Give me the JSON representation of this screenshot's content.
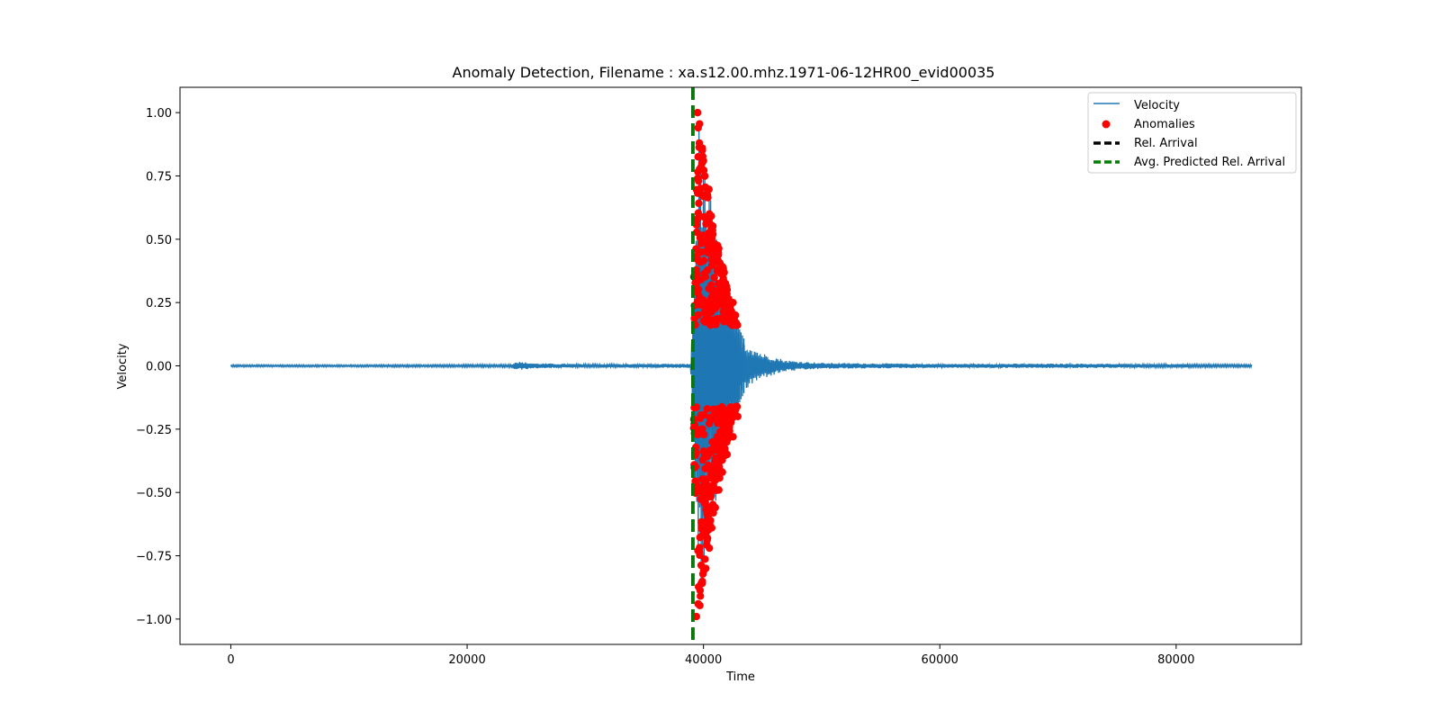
{
  "chart_data": {
    "type": "line",
    "title": "Anomaly Detection, Filename : xa.s12.00.mhz.1971-06-12HR00_evid00035",
    "xlabel": "Time",
    "ylabel": "Velocity",
    "xlim": [
      -4300,
      90600
    ],
    "ylim": [
      -1.1,
      1.1
    ],
    "x_ticks": [
      0,
      20000,
      40000,
      60000,
      80000
    ],
    "x_tick_labels": [
      "0",
      "20000",
      "40000",
      "60000",
      "80000"
    ],
    "y_ticks": [
      1.0,
      0.75,
      0.5,
      0.25,
      0.0,
      -0.25,
      -0.5,
      -0.75,
      -1.0
    ],
    "y_tick_labels": [
      "1.00",
      "0.75",
      "0.50",
      "0.25",
      "0.00",
      "−0.25",
      "−0.50",
      "−0.75",
      "−1.00"
    ],
    "grid": false,
    "legend_position": "top-right",
    "series": [
      {
        "name": "Velocity",
        "kind": "line",
        "color": "#1f77b4",
        "envelope": [
          {
            "t": 0,
            "amp": 0.004
          },
          {
            "t": 10000,
            "amp": 0.004
          },
          {
            "t": 20000,
            "amp": 0.005
          },
          {
            "t": 23800,
            "amp": 0.006
          },
          {
            "t": 24000,
            "amp": 0.018
          },
          {
            "t": 25800,
            "amp": 0.01
          },
          {
            "t": 30000,
            "amp": 0.007
          },
          {
            "t": 38900,
            "amp": 0.008
          },
          {
            "t": 39100,
            "amp": 0.25
          },
          {
            "t": 39600,
            "amp": 1.0
          },
          {
            "t": 41000,
            "amp": 0.55
          },
          {
            "t": 42500,
            "amp": 0.2
          },
          {
            "t": 43500,
            "amp": 0.1
          },
          {
            "t": 45000,
            "amp": 0.05
          },
          {
            "t": 47000,
            "amp": 0.022
          },
          {
            "t": 50000,
            "amp": 0.012
          },
          {
            "t": 60000,
            "amp": 0.008
          },
          {
            "t": 71000,
            "amp": 0.009
          },
          {
            "t": 80000,
            "amp": 0.007
          },
          {
            "t": 86400,
            "amp": 0.005
          }
        ]
      },
      {
        "name": "Anomalies",
        "kind": "scatter",
        "color": "#ff0000",
        "abs_value_min": 0.16,
        "points": [
          {
            "x": 39500,
            "y": 1.0
          },
          {
            "x": 39550,
            "y": 0.94
          },
          {
            "x": 39650,
            "y": 0.88
          },
          {
            "x": 39900,
            "y": 0.86
          },
          {
            "x": 40000,
            "y": 0.81
          },
          {
            "x": 40100,
            "y": 0.75
          },
          {
            "x": 40300,
            "y": 0.68
          },
          {
            "x": 40500,
            "y": 0.6
          },
          {
            "x": 40800,
            "y": 0.52
          },
          {
            "x": 41200,
            "y": 0.45
          },
          {
            "x": 41500,
            "y": 0.38
          },
          {
            "x": 42000,
            "y": 0.3
          },
          {
            "x": 42500,
            "y": 0.25
          },
          {
            "x": 42700,
            "y": 0.2
          },
          {
            "x": 39400,
            "y": -0.99
          },
          {
            "x": 39550,
            "y": -0.94
          },
          {
            "x": 39800,
            "y": -0.86
          },
          {
            "x": 40200,
            "y": -0.8
          },
          {
            "x": 40500,
            "y": -0.72
          },
          {
            "x": 40700,
            "y": -0.64
          },
          {
            "x": 41000,
            "y": -0.56
          },
          {
            "x": 41300,
            "y": -0.49
          },
          {
            "x": 41600,
            "y": -0.42
          },
          {
            "x": 42000,
            "y": -0.35
          },
          {
            "x": 42500,
            "y": -0.28
          },
          {
            "x": 42900,
            "y": -0.2
          }
        ]
      },
      {
        "name": "Rel. Arrival",
        "kind": "vline",
        "color": "#000000",
        "x": 39100
      },
      {
        "name": "Avg. Predicted Rel. Arrival",
        "kind": "vline",
        "color": "#008000",
        "x": 39120
      }
    ]
  }
}
